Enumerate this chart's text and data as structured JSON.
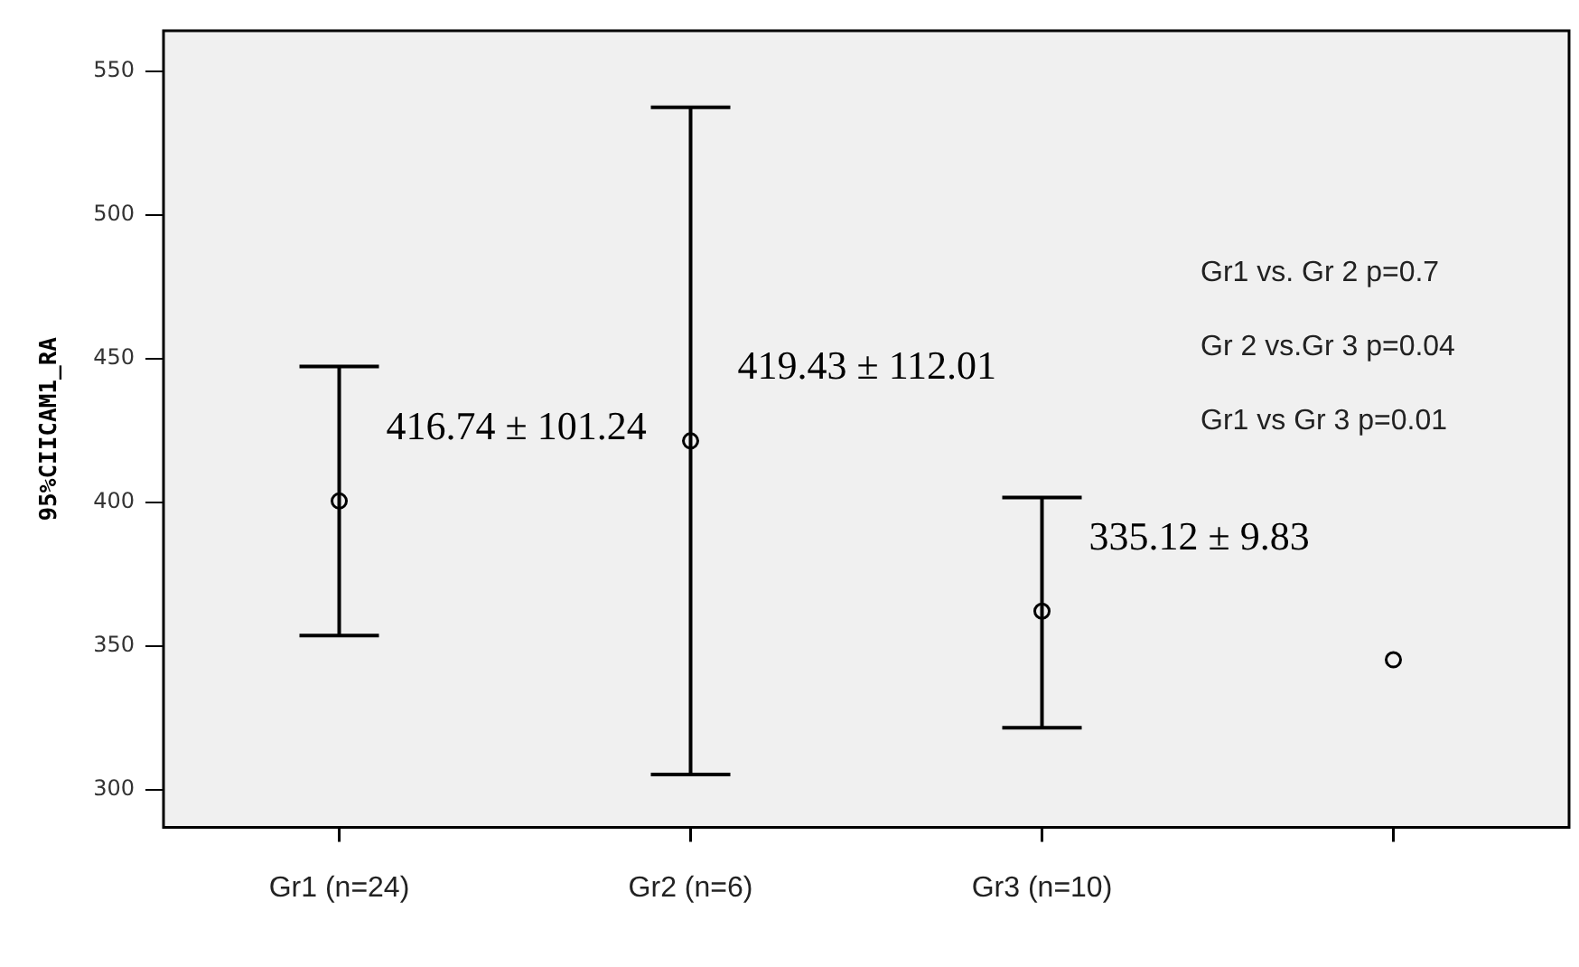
{
  "chart_data": {
    "type": "scatter",
    "ylabel": "95%CIICAM1_RA",
    "categories": [
      "Gr1 (n=24)",
      "Gr2 (n=6)",
      "Gr3 (n=10)",
      null
    ],
    "series": [
      {
        "color": "#000000",
        "values": [
          400.5,
          421.4,
          362.2,
          345.3
        ],
        "errors": [
          [
            353.7,
            447.3
          ],
          [
            305.4,
            537.4
          ],
          [
            321.7,
            401.7
          ],
          null
        ]
      }
    ],
    "ylim": [
      287,
      564
    ],
    "yticks": [
      300,
      350,
      400,
      450,
      500,
      550
    ],
    "grid": false,
    "legend": false,
    "marker": "circle",
    "annotations": [
      {
        "text": "416.74 ± 101.24",
        "x": "Gr1 (n=24)",
        "y": 400.5
      },
      {
        "text": "419.43 ± 112.01",
        "x": "Gr2 (n=6)",
        "y": 421.4
      },
      {
        "text": "335.12 ± 9.83",
        "x": "Gr3 (n=10)",
        "y": 362.2
      },
      "Gr1 vs. Gr 2 p=0.7",
      "Gr 2 vs.Gr 3 p=0.04",
      "Gr1 vs Gr 3 p=0.01"
    ]
  }
}
